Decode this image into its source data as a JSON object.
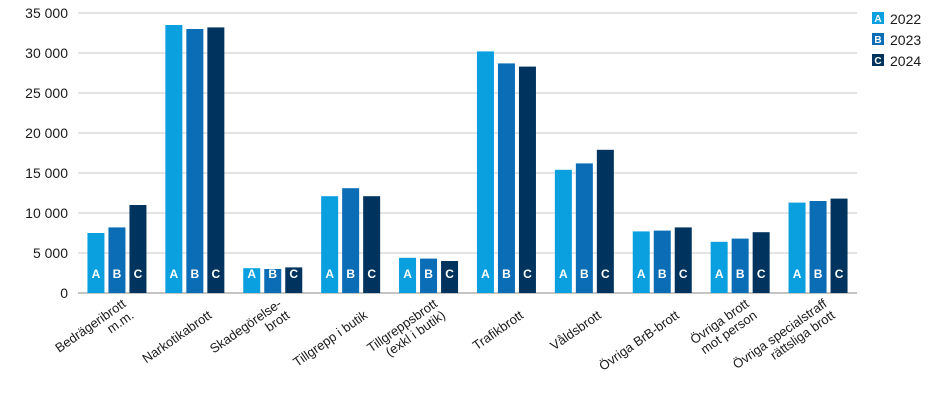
{
  "chart_data": {
    "type": "bar",
    "title": "",
    "xlabel": "",
    "ylabel": "",
    "ylim": [
      0,
      35000
    ],
    "yticks": [
      0,
      5000,
      10000,
      15000,
      20000,
      25000,
      30000,
      35000
    ],
    "ytick_labels": [
      "0",
      "5 000",
      "10 000",
      "15 000",
      "20 000",
      "25 000",
      "30 000",
      "35 000"
    ],
    "grid": true,
    "legend_position": "top-right",
    "categories": [
      [
        "Bedrägeribrott",
        "m.m."
      ],
      [
        "Narkotikabrott"
      ],
      [
        "Skadegörelse-",
        "brott"
      ],
      [
        "Tillgrepp i butik"
      ],
      [
        "Tillgreppsbrott",
        "(exkl i butik)"
      ],
      [
        "Trafikbrott"
      ],
      [
        "Våldsbrott"
      ],
      [
        "Övriga BrB-brott"
      ],
      [
        "Övriga brott",
        "mot person"
      ],
      [
        "Övriga specialstraff",
        "rättsliga brott"
      ]
    ],
    "series": [
      {
        "name": "2022",
        "letter": "A",
        "color": "#0a9fdf",
        "values": [
          7500,
          33500,
          3100,
          12100,
          4400,
          30200,
          15400,
          7700,
          6400,
          11300
        ]
      },
      {
        "name": "2023",
        "letter": "B",
        "color": "#0a6db5",
        "values": [
          8200,
          33000,
          3000,
          13100,
          4300,
          28700,
          16200,
          7800,
          6800,
          11500
        ]
      },
      {
        "name": "2024",
        "letter": "C",
        "color": "#00345e",
        "values": [
          11000,
          33200,
          3200,
          12100,
          4000,
          28300,
          17900,
          8200,
          7600,
          11800
        ]
      }
    ]
  }
}
